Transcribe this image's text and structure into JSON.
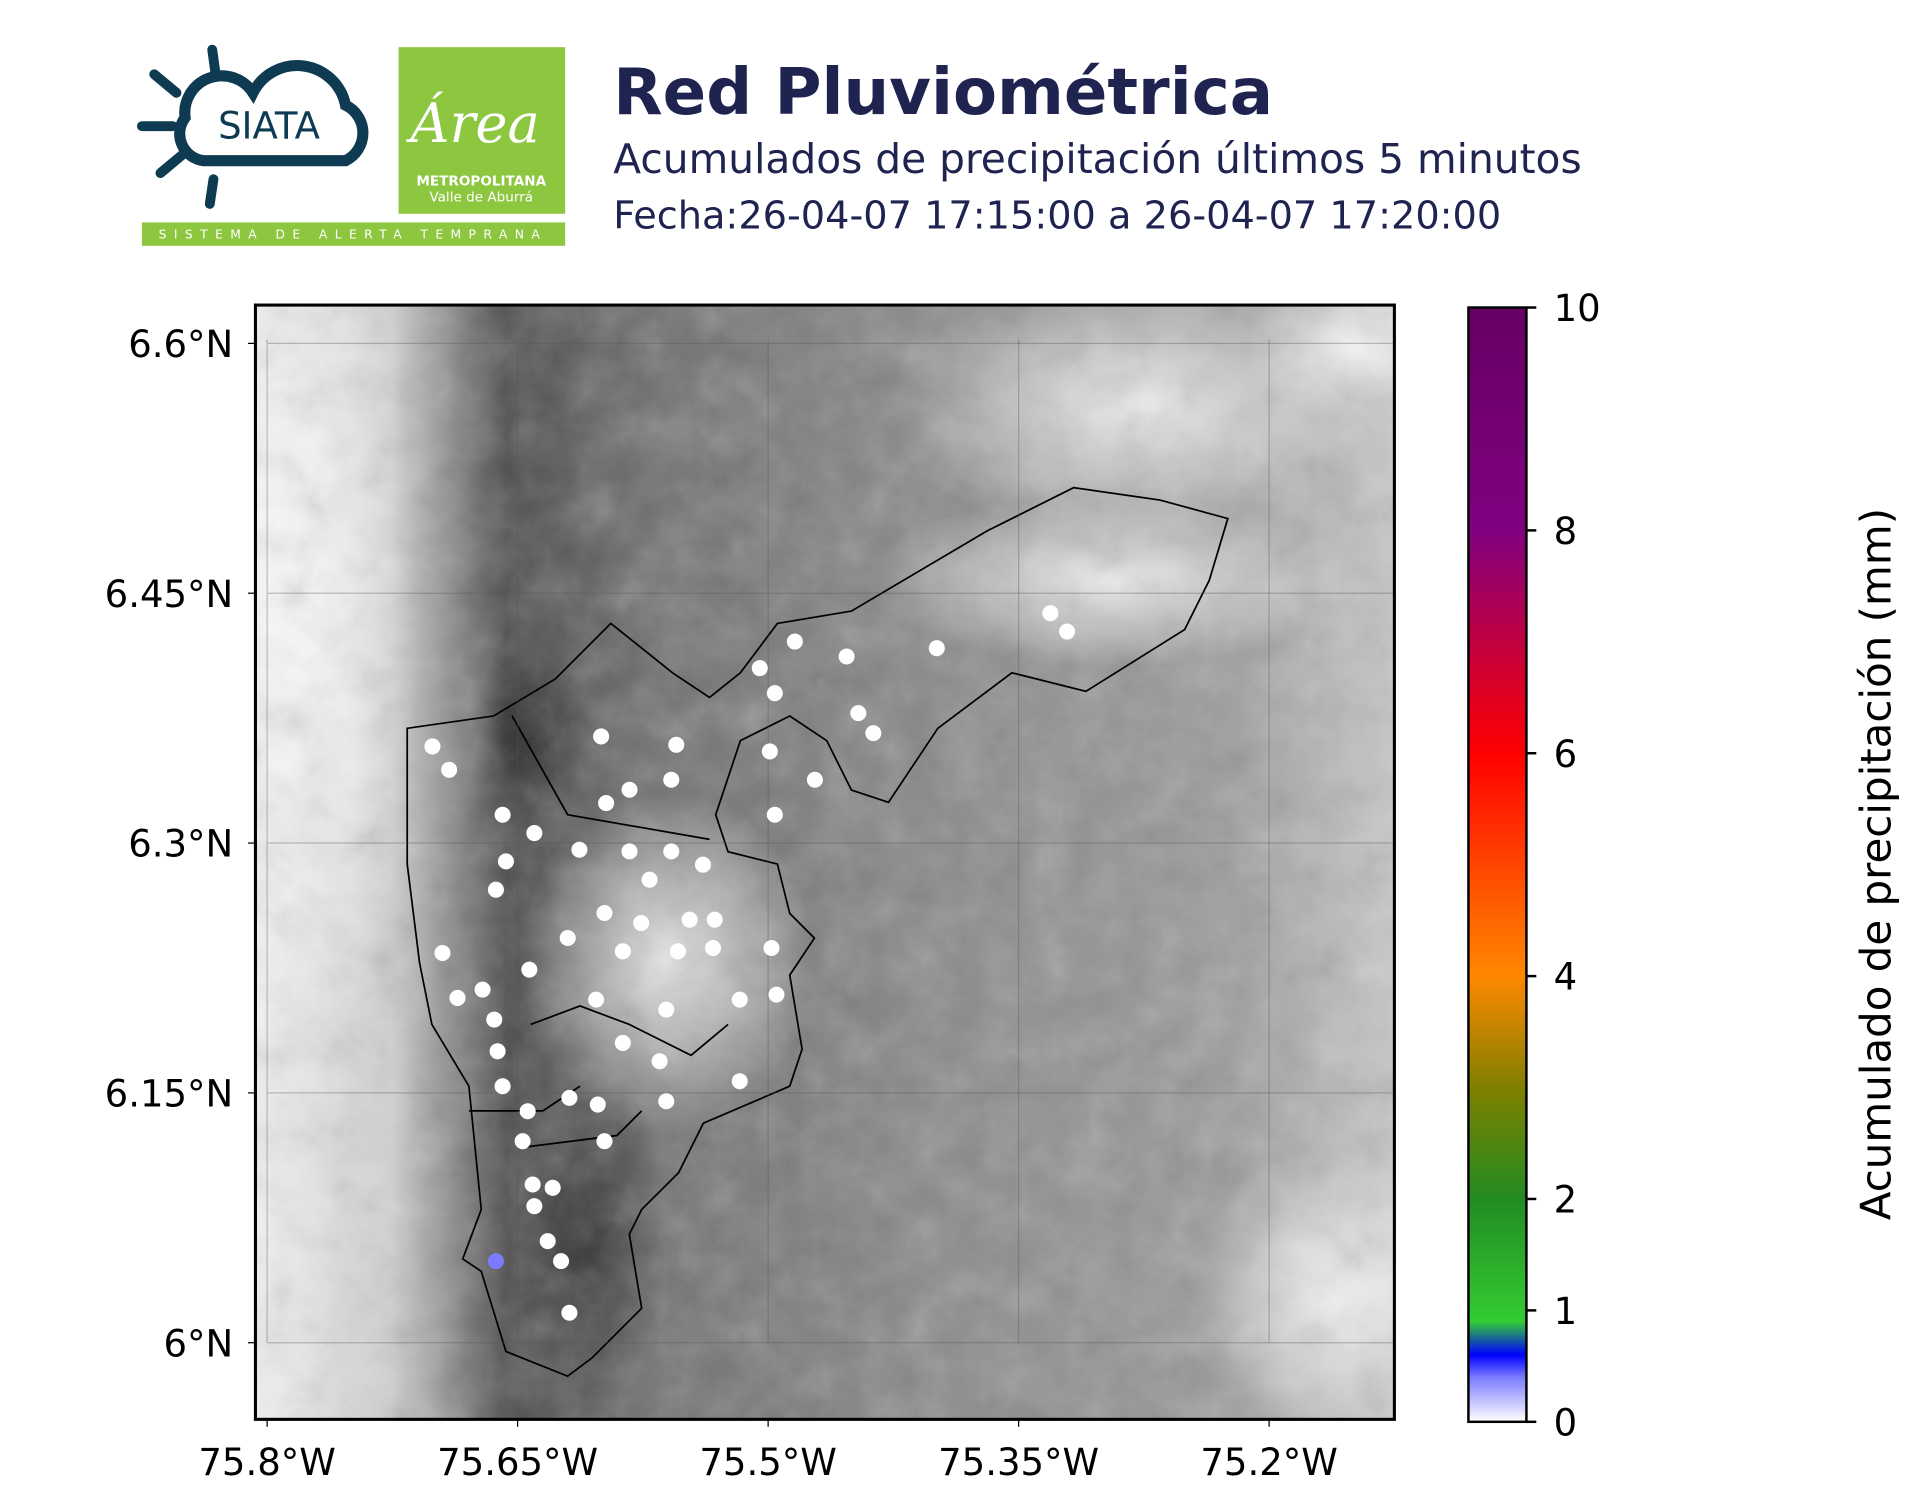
{
  "logos": {
    "siata": "SIATA",
    "area": "Área",
    "metro": "METROPOLITANA",
    "valle": "Valle de Aburrá",
    "sat": "SISTEMA DE ALERTA TEMPRANA"
  },
  "header": {
    "title": "Red Pluviométrica",
    "subtitle": "Acumulados de precipitación últimos 5 minutos",
    "date": "Fecha:26-04-07 17:15:00 a 26-04-07 17:20:00"
  },
  "chart_data": {
    "type": "map",
    "xlim": [
      -75.807,
      -75.125
    ],
    "ylim": [
      5.954,
      6.623
    ],
    "xticks": [
      {
        "value": -75.8,
        "label": "75.8°W"
      },
      {
        "value": -75.65,
        "label": "75.65°W"
      },
      {
        "value": -75.5,
        "label": "75.5°W"
      },
      {
        "value": -75.35,
        "label": "75.35°W"
      },
      {
        "value": -75.2,
        "label": "75.2°W"
      }
    ],
    "yticks": [
      {
        "value": 6.6,
        "label": "6.6°N"
      },
      {
        "value": 6.45,
        "label": "6.45°N"
      },
      {
        "value": 6.3,
        "label": "6.3°N"
      },
      {
        "value": 6.15,
        "label": "6.15°N"
      },
      {
        "value": 6.0,
        "label": "6°N"
      }
    ],
    "grid": true,
    "colorbar": {
      "label": "Acumulado de precipitación (mm)",
      "clim": [
        0,
        10
      ],
      "ticks": [
        0,
        1,
        2,
        4,
        6,
        8,
        10
      ]
    },
    "stations": {
      "lon": [
        -75.701,
        -75.691,
        -75.659,
        -75.64,
        -75.657,
        -75.663,
        -75.695,
        -75.686,
        -75.671,
        -75.664,
        -75.662,
        -75.659,
        -75.644,
        -75.647,
        -75.641,
        -75.629,
        -75.64,
        -75.632,
        -75.624,
        -75.619,
        -75.663,
        -75.6,
        -75.555,
        -75.505,
        -75.484,
        -75.453,
        -75.496,
        -75.499,
        -75.472,
        -75.446,
        -75.437,
        -75.496,
        -75.399,
        -75.331,
        -75.321,
        -75.613,
        -75.583,
        -75.558,
        -75.539,
        -75.571,
        -75.598,
        -75.576,
        -75.547,
        -75.62,
        -75.587,
        -75.554,
        -75.533,
        -75.498,
        -75.643,
        -75.603,
        -75.561,
        -75.517,
        -75.495,
        -75.587,
        -75.565,
        -75.517,
        -75.619,
        -75.602,
        -75.561,
        -75.598,
        -75.583,
        -75.558,
        -75.597,
        -75.532
      ],
      "lat": [
        6.358,
        6.344,
        6.317,
        6.306,
        6.289,
        6.272,
        6.234,
        6.207,
        6.212,
        6.194,
        6.175,
        6.154,
        6.139,
        6.121,
        6.095,
        6.093,
        6.082,
        6.061,
        6.049,
        6.018,
        6.049,
        6.364,
        6.359,
        6.405,
        6.421,
        6.412,
        6.39,
        6.355,
        6.338,
        6.378,
        6.366,
        6.317,
        6.417,
        6.438,
        6.427,
        6.296,
        6.295,
        6.295,
        6.287,
        6.278,
        6.258,
        6.252,
        6.254,
        6.243,
        6.235,
        6.235,
        6.237,
        6.237,
        6.224,
        6.206,
        6.2,
        6.206,
        6.209,
        6.18,
        6.169,
        6.157,
        6.147,
        6.143,
        6.145,
        6.121,
        6.332,
        6.338,
        6.324,
        6.254
      ],
      "values": [
        0,
        0,
        0,
        0,
        0,
        0,
        0,
        0,
        0,
        0,
        0,
        0,
        0,
        0,
        0,
        0,
        0,
        0,
        0,
        0,
        0.4,
        0,
        0,
        0,
        0,
        0,
        0,
        0,
        0,
        0,
        0,
        0,
        0,
        0,
        0,
        0,
        0,
        0,
        0,
        0,
        0,
        0,
        0,
        0,
        0,
        0,
        0,
        0,
        0,
        0,
        0,
        0,
        0,
        0,
        0,
        0,
        0,
        0,
        0,
        0,
        0,
        0,
        0,
        0
      ]
    }
  }
}
